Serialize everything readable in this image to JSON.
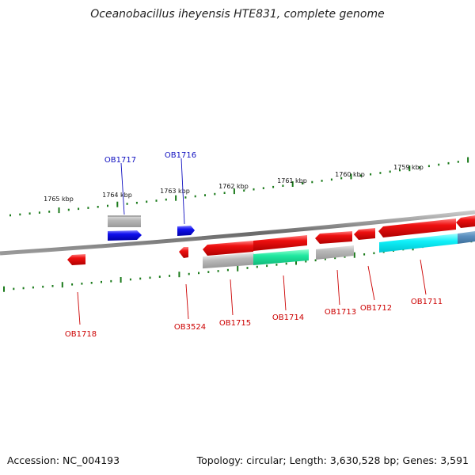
{
  "title": "Oceanobacillus iheyensis HTE831, complete genome",
  "footer": {
    "accession": "Accession: NC_004193",
    "summary": "Topology: circular; Length: 3,630,528 bp; Genes: 3,591"
  },
  "colors": {
    "backbone": "#7a7a7a",
    "ticks": "#1a7a1a",
    "forward_gene": "#1010e0",
    "reverse_gene": "#e01010",
    "forward_label": "#1010c0",
    "reverse_label": "#cc0000"
  },
  "scale_labels": [
    "1765 kbp",
    "1764 kbp",
    "1763 kbp",
    "1762 kbp",
    "1761 kbp",
    "1760 kbp",
    "1759 kbp"
  ],
  "forward_gene_labels": [
    "OB1717",
    "OB1716"
  ],
  "reverse_gene_labels": [
    "OB1718",
    "OB3524",
    "OB1715",
    "OB1714",
    "OB1713",
    "OB1712",
    "OB1711"
  ]
}
